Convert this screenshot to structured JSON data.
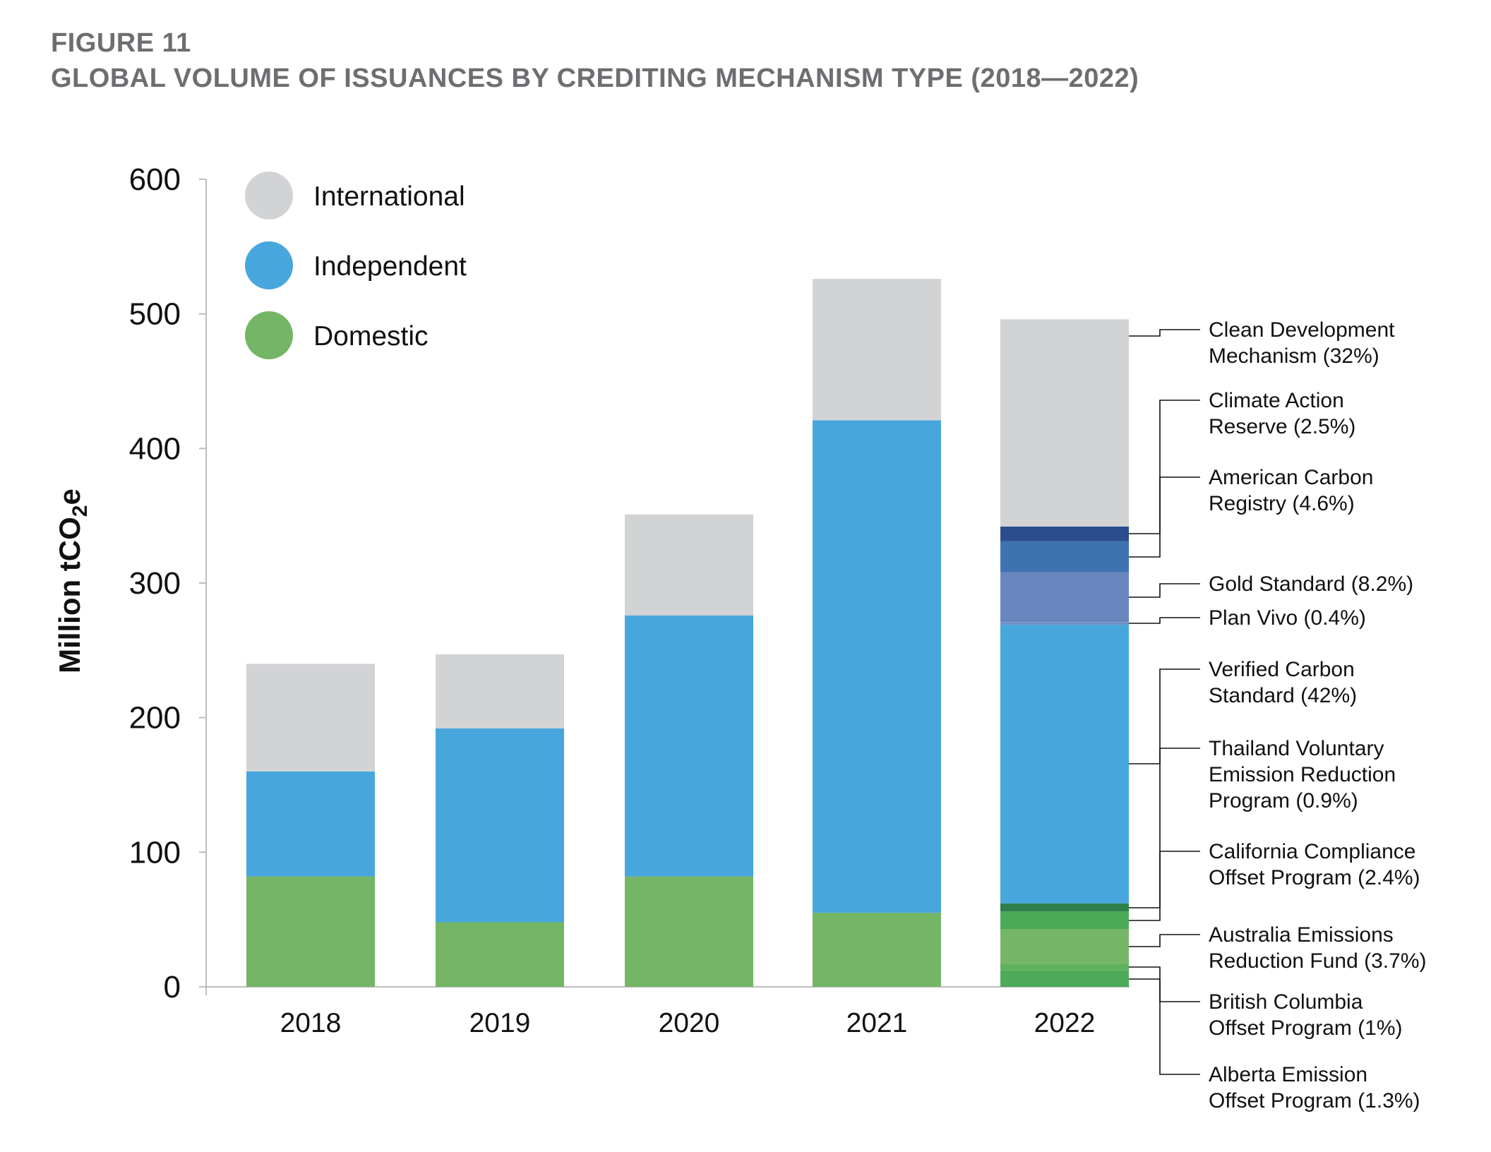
{
  "figure": {
    "label": "FIGURE 11",
    "title": "GLOBAL VOLUME OF ISSUANCES BY CREDITING MECHANISM TYPE (2018—2022)"
  },
  "chart_data": {
    "type": "bar",
    "stacked": true,
    "title": "GLOBAL VOLUME OF ISSUANCES BY CREDITING MECHANISM TYPE (2018—2022)",
    "xlabel": "",
    "ylabel": "Million tCO",
    "ylabel_sub": "2",
    "ylabel_suffix": "e",
    "ylim": [
      0,
      600
    ],
    "yticks": [
      0,
      100,
      200,
      300,
      400,
      500,
      600
    ],
    "ytick_labels": [
      "0",
      "100",
      "200",
      "300",
      "400",
      "500",
      "600"
    ],
    "categories": [
      "2018",
      "2019",
      "2020",
      "2021",
      "2022"
    ],
    "legend_position": "top-left",
    "series": [
      {
        "name": "Domestic",
        "color": "#74b566",
        "values": [
          82,
          48,
          82,
          55,
          62
        ]
      },
      {
        "name": "Independent",
        "color": "#47a7dc",
        "values": [
          78,
          144,
          194,
          366,
          207
        ]
      },
      {
        "name": "International",
        "color": "#d2d3d5",
        "values": [
          80,
          55,
          75,
          105,
          154
        ]
      }
    ],
    "breakdown_2022": [
      {
        "name": "Alberta Emission Offset Program (1.3%)",
        "lines": [
          "Alberta Emission",
          "Offset Program (1.3%)"
        ],
        "from": 0,
        "to": 12,
        "color": "#4caa58"
      },
      {
        "name": "British Columbia Offset Program (1%)",
        "lines": [
          "British Columbia",
          "Offset Program (1%)"
        ],
        "from": 12,
        "to": 17,
        "color": "#5fb15c"
      },
      {
        "name": "Australia Emissions Reduction Fund (3.7%)",
        "lines": [
          "Australia Emissions",
          "Reduction Fund (3.7%)"
        ],
        "from": 17,
        "to": 43,
        "color": "#74b566"
      },
      {
        "name": "California Compliance Offset Program (2.4%)",
        "lines": [
          "California Compliance",
          "Offset Program (2.4%)"
        ],
        "from": 43,
        "to": 56,
        "color": "#4aaa56"
      },
      {
        "name": "Thailand Voluntary Emission Reduction Program (0.9%)",
        "lines": [
          "Thailand Voluntary",
          "Emission Reduction",
          "Program (0.9%)"
        ],
        "from": 56,
        "to": 62,
        "color": "#2f7f4a"
      },
      {
        "name": "Verified Carbon Standard (42%)",
        "lines": [
          "Verified Carbon",
          "Standard (42%)"
        ],
        "from": 62,
        "to": 269,
        "color": "#47a7dc"
      },
      {
        "name": "Plan Vivo (0.4%)",
        "lines": [
          "Plan Vivo (0.4%)"
        ],
        "from": 269,
        "to": 271,
        "color": "#6f92c8"
      },
      {
        "name": "Gold Standard (8.2%)",
        "lines": [
          "Gold Standard (8.2%)"
        ],
        "from": 271,
        "to": 308,
        "color": "#6a86be"
      },
      {
        "name": "American Carbon Registry (4.6%)",
        "lines": [
          "American Carbon",
          "Registry (4.6%)"
        ],
        "from": 308,
        "to": 331,
        "color": "#3f72b1"
      },
      {
        "name": "Climate Action Reserve (2.5%)",
        "lines": [
          "Climate Action",
          "Reserve (2.5%)"
        ],
        "from": 331,
        "to": 342,
        "color": "#2c4d8d"
      },
      {
        "name": "Clean Development Mechanism (32%)",
        "lines": [
          "Clean Development",
          "Mechanism (32%)"
        ],
        "from": 342,
        "to": 496,
        "color": "#d2d3d5"
      }
    ]
  },
  "legend": {
    "items": [
      {
        "label": "International",
        "color": "#d2d3d5"
      },
      {
        "label": "Independent",
        "color": "#47a7dc"
      },
      {
        "label": "Domestic",
        "color": "#74b566"
      }
    ]
  }
}
